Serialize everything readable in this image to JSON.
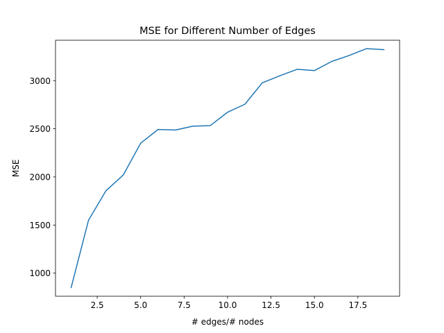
{
  "chart_data": {
    "type": "line",
    "title": "MSE for Different Number of Edges",
    "xlabel": "# edges/# nodes",
    "ylabel": "MSE",
    "xlim": [
      0.1,
      19.9
    ],
    "ylim": [
      760,
      3420
    ],
    "xticks": [
      2.5,
      5.0,
      7.5,
      10.0,
      12.5,
      15.0,
      17.5
    ],
    "xtick_labels": [
      "2.5",
      "5.0",
      "7.5",
      "10.0",
      "12.5",
      "15.0",
      "17.5"
    ],
    "yticks": [
      1000,
      1500,
      2000,
      2500,
      3000
    ],
    "ytick_labels": [
      "1000",
      "1500",
      "2000",
      "2500",
      "3000"
    ],
    "grid": false,
    "legend": "none",
    "series": [
      {
        "color": "#1f77b4",
        "x": [
          1,
          2,
          3,
          4,
          5,
          6,
          7,
          8,
          9,
          10,
          11,
          12,
          13,
          14,
          15,
          16,
          17,
          18,
          19
        ],
        "y": [
          850,
          1550,
          1855,
          2020,
          2350,
          2493,
          2487,
          2527,
          2532,
          2672,
          2755,
          2978,
          3050,
          3118,
          3105,
          3200,
          3262,
          3333,
          3322
        ]
      }
    ]
  }
}
